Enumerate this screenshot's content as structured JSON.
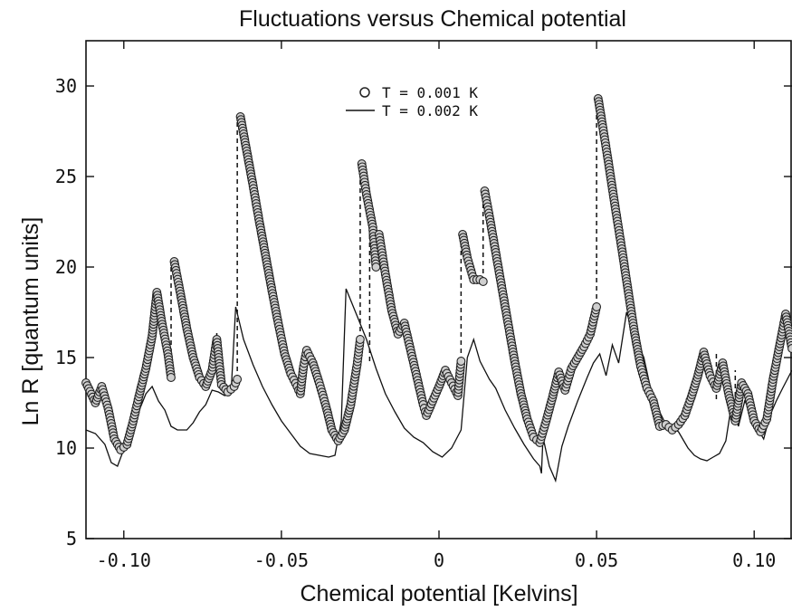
{
  "chart_data": {
    "type": "scatter",
    "title": "Fluctuations versus Chemical potential",
    "xlabel": "Chemical potential [Kelvins]",
    "ylabel": "Ln R [quantum units]",
    "xlim": [
      -0.112,
      0.112
    ],
    "ylim": [
      5,
      32.5
    ],
    "xticks": [
      -0.1,
      -0.05,
      0,
      0.05,
      0.1
    ],
    "xtick_labels": [
      "-0.10",
      "-0.05",
      "0",
      "0.05",
      "0.10"
    ],
    "yticks": [
      5,
      10,
      15,
      20,
      25,
      30
    ],
    "ytick_labels": [
      "5",
      "10",
      "15",
      "20",
      "25",
      "30"
    ],
    "grid": false,
    "legend_position": "top-center",
    "series": [
      {
        "name": "T = 0.001 K",
        "style": "open-circles",
        "color": "#222222",
        "segments": [
          [
            [
              -0.112,
              13.6
            ],
            [
              -0.109,
              12.5
            ],
            [
              -0.107,
              13.4
            ],
            [
              -0.105,
              12.2
            ],
            [
              -0.103,
              10.5
            ],
            [
              -0.101,
              9.9
            ],
            [
              -0.099,
              10.2
            ],
            [
              -0.097,
              11.5
            ],
            [
              -0.095,
              13.0
            ],
            [
              -0.093,
              14.4
            ],
            [
              -0.091,
              16.2
            ],
            [
              -0.0895,
              18.6
            ],
            [
              -0.088,
              17.0
            ],
            [
              -0.086,
              15.2
            ],
            [
              -0.085,
              13.9
            ]
          ],
          [
            [
              -0.084,
              20.3
            ],
            [
              -0.082,
              18.5
            ],
            [
              -0.08,
              16.6
            ],
            [
              -0.078,
              15.0
            ],
            [
              -0.076,
              13.9
            ],
            [
              -0.074,
              13.4
            ],
            [
              -0.072,
              14.3
            ],
            [
              -0.0705,
              16.0
            ],
            [
              -0.069,
              13.5
            ],
            [
              -0.067,
              13.1
            ],
            [
              -0.065,
              13.4
            ],
            [
              -0.064,
              13.8
            ]
          ],
          [
            [
              -0.063,
              28.3
            ],
            [
              -0.061,
              26.4
            ],
            [
              -0.059,
              24.5
            ],
            [
              -0.057,
              22.5
            ],
            [
              -0.055,
              20.6
            ],
            [
              -0.053,
              18.7
            ],
            [
              -0.051,
              16.9
            ],
            [
              -0.049,
              15.2
            ],
            [
              -0.047,
              14.1
            ],
            [
              -0.045,
              13.4
            ],
            [
              -0.044,
              13.0
            ],
            [
              -0.043,
              14.5
            ],
            [
              -0.042,
              15.4
            ],
            [
              -0.04,
              14.7
            ],
            [
              -0.038,
              13.6
            ],
            [
              -0.036,
              12.4
            ],
            [
              -0.034,
              11.0
            ],
            [
              -0.032,
              10.4
            ],
            [
              -0.03,
              11.0
            ],
            [
              -0.028,
              12.4
            ],
            [
              -0.026,
              14.6
            ],
            [
              -0.025,
              16.0
            ]
          ],
          [
            [
              -0.0245,
              25.7
            ],
            [
              -0.023,
              24.0
            ],
            [
              -0.021,
              22.2
            ],
            [
              -0.02,
              20.0
            ]
          ],
          [
            [
              -0.019,
              21.8
            ],
            [
              -0.017,
              19.6
            ],
            [
              -0.015,
              17.6
            ],
            [
              -0.013,
              16.3
            ],
            [
              -0.011,
              16.9
            ],
            [
              -0.009,
              15.4
            ],
            [
              -0.007,
              13.9
            ],
            [
              -0.005,
              12.4
            ],
            [
              -0.004,
              11.8
            ],
            [
              -0.002,
              12.6
            ],
            [
              0.0,
              13.4
            ],
            [
              0.002,
              14.3
            ],
            [
              0.004,
              13.6
            ],
            [
              0.006,
              12.9
            ],
            [
              0.007,
              14.8
            ]
          ],
          [
            [
              0.0075,
              21.8
            ],
            [
              0.009,
              20.5
            ],
            [
              0.011,
              19.3
            ],
            [
              0.013,
              19.3
            ],
            [
              0.014,
              19.2
            ]
          ],
          [
            [
              0.0145,
              24.2
            ],
            [
              0.016,
              22.8
            ],
            [
              0.018,
              20.8
            ],
            [
              0.02,
              18.8
            ],
            [
              0.022,
              16.8
            ],
            [
              0.024,
              14.8
            ],
            [
              0.026,
              13.0
            ],
            [
              0.028,
              11.6
            ],
            [
              0.03,
              10.6
            ],
            [
              0.032,
              10.3
            ],
            [
              0.034,
              11.5
            ],
            [
              0.036,
              12.8
            ],
            [
              0.038,
              14.2
            ],
            [
              0.04,
              13.2
            ],
            [
              0.042,
              14.4
            ],
            [
              0.044,
              15.0
            ],
            [
              0.046,
              15.6
            ],
            [
              0.048,
              16.3
            ],
            [
              0.05,
              17.8
            ]
          ],
          [
            [
              0.0505,
              29.3
            ],
            [
              0.052,
              27.7
            ],
            [
              0.054,
              25.5
            ],
            [
              0.056,
              23.2
            ],
            [
              0.058,
              21.0
            ],
            [
              0.06,
              18.7
            ],
            [
              0.062,
              16.4
            ],
            [
              0.064,
              14.5
            ],
            [
              0.066,
              13.3
            ],
            [
              0.068,
              12.6
            ],
            [
              0.07,
              11.2
            ],
            [
              0.072,
              11.3
            ],
            [
              0.074,
              11.0
            ],
            [
              0.076,
              11.3
            ],
            [
              0.078,
              11.8
            ],
            [
              0.08,
              12.8
            ],
            [
              0.082,
              13.9
            ],
            [
              0.084,
              15.3
            ],
            [
              0.086,
              14.0
            ],
            [
              0.088,
              13.3
            ],
            [
              0.09,
              14.7
            ],
            [
              0.092,
              12.9
            ],
            [
              0.094,
              11.5
            ],
            [
              0.096,
              13.6
            ],
            [
              0.098,
              13.0
            ],
            [
              0.1,
              11.5
            ],
            [
              0.102,
              10.9
            ],
            [
              0.104,
              11.6
            ],
            [
              0.106,
              13.8
            ],
            [
              0.108,
              15.6
            ],
            [
              0.11,
              17.4
            ],
            [
              0.112,
              15.5
            ]
          ]
        ]
      },
      {
        "name": "T = 0.002 K",
        "style": "solid-line",
        "color": "#111111",
        "segments": [
          [
            [
              -0.112,
              11.0
            ],
            [
              -0.109,
              10.8
            ],
            [
              -0.106,
              10.2
            ],
            [
              -0.104,
              9.2
            ],
            [
              -0.102,
              9.0
            ],
            [
              -0.099,
              10.4
            ],
            [
              -0.096,
              11.7
            ],
            [
              -0.093,
              13.0
            ],
            [
              -0.091,
              13.4
            ],
            [
              -0.089,
              12.6
            ],
            [
              -0.087,
              12.1
            ],
            [
              -0.085,
              11.2
            ],
            [
              -0.083,
              11.0
            ],
            [
              -0.08,
              11.0
            ],
            [
              -0.078,
              11.4
            ],
            [
              -0.076,
              12.0
            ],
            [
              -0.074,
              12.4
            ],
            [
              -0.072,
              13.2
            ],
            [
              -0.07,
              13.1
            ],
            [
              -0.068,
              12.9
            ],
            [
              -0.066,
              13.0
            ],
            [
              -0.0645,
              17.8
            ],
            [
              -0.062,
              16.0
            ],
            [
              -0.059,
              14.6
            ],
            [
              -0.056,
              13.4
            ],
            [
              -0.053,
              12.4
            ],
            [
              -0.05,
              11.5
            ],
            [
              -0.047,
              10.8
            ],
            [
              -0.044,
              10.1
            ],
            [
              -0.041,
              9.7
            ],
            [
              -0.038,
              9.6
            ],
            [
              -0.035,
              9.5
            ],
            [
              -0.033,
              9.6
            ],
            [
              -0.031,
              11.5
            ],
            [
              -0.0295,
              18.8
            ],
            [
              -0.026,
              17.3
            ],
            [
              -0.023,
              16.0
            ],
            [
              -0.02,
              14.4
            ],
            [
              -0.017,
              13.0
            ],
            [
              -0.014,
              12.0
            ],
            [
              -0.011,
              11.1
            ],
            [
              -0.008,
              10.6
            ],
            [
              -0.005,
              10.3
            ],
            [
              -0.002,
              9.8
            ],
            [
              0.001,
              9.5
            ],
            [
              0.004,
              10.0
            ],
            [
              0.007,
              11.0
            ],
            [
              0.009,
              15.0
            ],
            [
              0.011,
              16.0
            ],
            [
              0.013,
              14.8
            ],
            [
              0.016,
              13.8
            ],
            [
              0.018,
              13.3
            ],
            [
              0.021,
              12.1
            ],
            [
              0.024,
              11.1
            ],
            [
              0.027,
              10.2
            ],
            [
              0.03,
              9.4
            ],
            [
              0.032,
              9.0
            ],
            [
              0.0325,
              8.6
            ],
            [
              0.033,
              10.6
            ],
            [
              0.035,
              9.0
            ],
            [
              0.037,
              8.2
            ],
            [
              0.039,
              10.1
            ],
            [
              0.041,
              11.2
            ],
            [
              0.044,
              12.6
            ],
            [
              0.047,
              13.9
            ],
            [
              0.049,
              14.7
            ],
            [
              0.051,
              15.2
            ],
            [
              0.053,
              14.0
            ],
            [
              0.055,
              15.7
            ],
            [
              0.057,
              14.7
            ],
            [
              0.0595,
              17.5
            ],
            [
              0.062,
              16.2
            ],
            [
              0.065,
              15.0
            ],
            [
              0.068,
              12.6
            ],
            [
              0.07,
              12.0
            ],
            [
              0.072,
              11.3
            ],
            [
              0.074,
              11.1
            ],
            [
              0.076,
              10.9
            ],
            [
              0.077,
              10.6
            ],
            [
              0.079,
              10.0
            ],
            [
              0.081,
              9.6
            ],
            [
              0.083,
              9.4
            ],
            [
              0.085,
              9.3
            ],
            [
              0.087,
              9.5
            ],
            [
              0.089,
              9.7
            ],
            [
              0.091,
              10.4
            ],
            [
              0.093,
              12.6
            ],
            [
              0.095,
              11.2
            ],
            [
              0.097,
              12.6
            ],
            [
              0.099,
              12.0
            ],
            [
              0.101,
              11.1
            ],
            [
              0.103,
              10.5
            ],
            [
              0.105,
              11.8
            ],
            [
              0.107,
              12.6
            ],
            [
              0.109,
              13.3
            ],
            [
              0.112,
              14.3
            ]
          ]
        ]
      }
    ],
    "jumps": [
      [
        -0.085,
        13.9,
        20.3
      ],
      [
        -0.064,
        13.8,
        28.3
      ],
      [
        -0.025,
        16.0,
        25.7
      ],
      [
        -0.02,
        20.0,
        21.8
      ],
      [
        0.007,
        14.8,
        21.8
      ],
      [
        0.014,
        19.2,
        24.2
      ],
      [
        0.05,
        17.8,
        29.3
      ],
      [
        -0.0705,
        14.3,
        16.5
      ],
      [
        -0.022,
        14.8,
        22.0
      ],
      [
        0.088,
        12.7,
        15.2
      ],
      [
        0.094,
        11.5,
        14.3
      ]
    ],
    "annotations": {
      "legend_marker_circle": "o",
      "legend_text_1": "T = 0.001 K",
      "legend_text_2": "T = 0.002 K"
    }
  }
}
